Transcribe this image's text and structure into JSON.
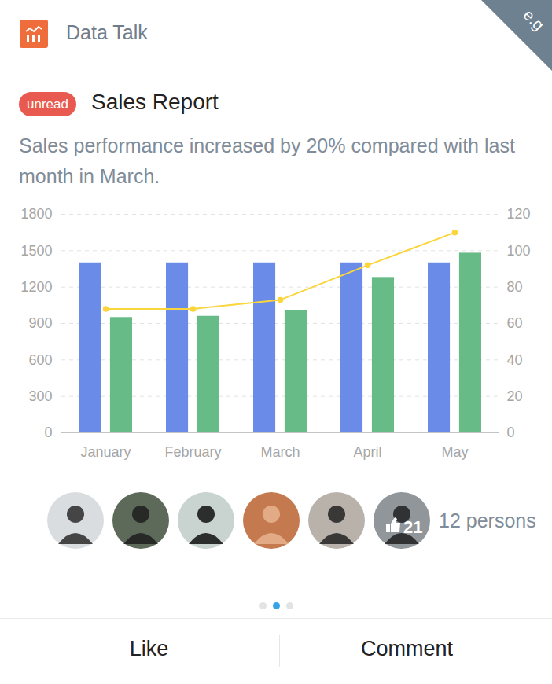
{
  "header": {
    "title": "Data Talk",
    "corner": "e.g"
  },
  "report": {
    "badge": "unread",
    "title": "Sales Report",
    "description": "Sales performance increased by 20% compared with last month in March."
  },
  "chart_data": {
    "type": "bar",
    "categories": [
      "January",
      "February",
      "March",
      "April",
      "May"
    ],
    "series": [
      {
        "color": "#6a8be8",
        "values": [
          1400,
          1400,
          1400,
          1400,
          1400
        ]
      },
      {
        "color": "#67bb87",
        "values": [
          950,
          960,
          1010,
          1280,
          1480
        ]
      },
      {
        "type": "line",
        "axis": "y2",
        "color": "#fad53c",
        "marker": "circle",
        "values": [
          68,
          68,
          73,
          92,
          110
        ]
      }
    ],
    "ylim": [
      0,
      1800
    ],
    "yticks": [
      0,
      300,
      600,
      900,
      1200,
      1500,
      1800
    ],
    "y2lim": [
      0,
      120
    ],
    "y2ticks": [
      0,
      20,
      40,
      60,
      80,
      100,
      120
    ],
    "grid": true
  },
  "reactions": {
    "likes": 21,
    "people": "12 persons"
  },
  "pagination": {
    "pages": 3,
    "current": 2
  },
  "actions": [
    "Like",
    "Comment"
  ]
}
